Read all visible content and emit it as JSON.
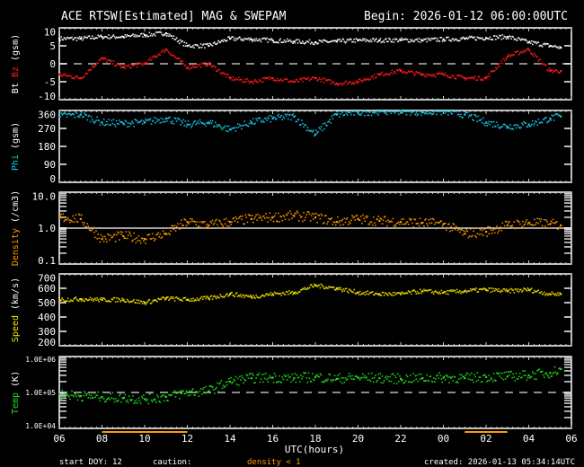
{
  "header": {
    "title": "ACE RTSW[Estimated] MAG & SWEPAM",
    "begin": "Begin: 2026-01-12 06:00:00UTC"
  },
  "footer": {
    "start_doy_label": "start DOY:",
    "start_doy": "12",
    "caution_label": "caution:",
    "caution_text": "density < 1",
    "created": "created: 2026-01-13 05:34:14UTC"
  },
  "colors": {
    "background": "#000000",
    "frame": "#ffffff",
    "bt": "#ffffff",
    "bz": "#ff1a1a",
    "phi": "#19c8e6",
    "density": "#ff9900",
    "speed": "#f0e000",
    "temp": "#22dd22",
    "caution": "#ff9900"
  },
  "chart_data": {
    "type": "scatter",
    "title": "ACE RTSW[Estimated] MAG & SWEPAM",
    "xlabel": "UTC(hours)",
    "x_tick_labels": [
      "06",
      "08",
      "10",
      "12",
      "14",
      "16",
      "18",
      "20",
      "22",
      "00",
      "02",
      "04",
      "06"
    ],
    "times": [
      "06:00",
      "07:00",
      "08:00",
      "09:00",
      "10:00",
      "11:00",
      "12:00",
      "13:00",
      "14:00",
      "15:00",
      "16:00",
      "17:00",
      "18:00",
      "19:00",
      "20:00",
      "21:00",
      "22:00",
      "23:00",
      "00:00",
      "01:00",
      "02:00",
      "03:00",
      "04:00",
      "05:00",
      "05:30"
    ],
    "panels": [
      {
        "id": "mag",
        "ylabel": [
          {
            "text": "Bt",
            "color": "#ffffff"
          },
          {
            "text": "Bz",
            "color": "#ff1a1a"
          },
          {
            "text": "(gsm)",
            "color": "#ffffff"
          }
        ],
        "ylim": [
          -10,
          10
        ],
        "log": false,
        "ticks": [
          "-10",
          "-5",
          "0",
          "5",
          "10"
        ],
        "tick_values": [
          -10,
          -5,
          0,
          5,
          10
        ],
        "ref_line": {
          "value": 0,
          "style": "dashed"
        },
        "series": [
          {
            "name": "Bt",
            "color": "#ffffff",
            "values": [
              7,
              7,
              7.5,
              7.5,
              8,
              8.5,
              5,
              5,
              7,
              6.8,
              6.5,
              6.2,
              6,
              6.2,
              6.5,
              6.5,
              6.6,
              6.5,
              6.8,
              7,
              7.2,
              7.5,
              6,
              5,
              4.5
            ]
          },
          {
            "name": "Bz",
            "color": "#ff1a1a",
            "values": [
              -3,
              -4,
              1.5,
              -1,
              0,
              4,
              -1,
              0,
              -4,
              -5,
              -4,
              -5,
              -4,
              -5.5,
              -5,
              -3,
              -2,
              -3,
              -3,
              -4,
              -4,
              2,
              4,
              -2,
              -2
            ]
          }
        ]
      },
      {
        "id": "phi",
        "ylabel": [
          {
            "text": "Phi",
            "color": "#19c8e6"
          },
          {
            "text": "(gsm)",
            "color": "#ffffff"
          }
        ],
        "ylim": [
          0,
          360
        ],
        "log": false,
        "ticks": [
          "0",
          "90",
          "180",
          "270",
          "360"
        ],
        "tick_values": [
          0,
          90,
          180,
          270,
          360
        ],
        "series": [
          {
            "name": "Phi",
            "color": "#19c8e6",
            "values": [
              330,
              340,
              300,
              295,
              300,
              320,
              290,
              300,
              265,
              300,
              320,
              330,
              240,
              340,
              350,
              355,
              358,
              350,
              355,
              340,
              300,
              280,
              290,
              320,
              330
            ]
          }
        ]
      },
      {
        "id": "density",
        "ylabel": [
          {
            "text": "Density",
            "color": "#ff9900"
          },
          {
            "text": "(/cm3)",
            "color": "#ffffff"
          }
        ],
        "ylim": [
          0.1,
          10
        ],
        "log": true,
        "ticks": [
          "0.1",
          "1.0",
          "10.0"
        ],
        "tick_values": [
          0.1,
          1,
          10
        ],
        "ref_line": {
          "value": 1,
          "style": "solid"
        },
        "series": [
          {
            "name": "Density",
            "color": "#ff9900",
            "values": [
              2,
              1.8,
              0.5,
              0.6,
              0.5,
              0.7,
              1.5,
              1.2,
              1.5,
              1.8,
              2,
              2.2,
              2,
              1.5,
              1.8,
              1.6,
              1.5,
              1.4,
              1.3,
              0.7,
              0.8,
              1.2,
              1.4,
              1.3,
              1.2
            ]
          }
        ]
      },
      {
        "id": "speed",
        "ylabel": [
          {
            "text": "Speed",
            "color": "#f0e000"
          },
          {
            "text": "(km/s)",
            "color": "#ffffff"
          }
        ],
        "ylim": [
          200,
          700
        ],
        "log": false,
        "ticks": [
          "200",
          "300",
          "400",
          "500",
          "600",
          "700"
        ],
        "tick_values": [
          200,
          300,
          400,
          500,
          600,
          700
        ],
        "series": [
          {
            "name": "Speed",
            "color": "#f0e000",
            "values": [
              520,
              525,
              520,
              520,
              500,
              530,
              520,
              530,
              560,
              540,
              560,
              570,
              620,
              600,
              570,
              560,
              560,
              580,
              570,
              580,
              590,
              580,
              590,
              560,
              560
            ]
          }
        ]
      },
      {
        "id": "temp",
        "ylabel": [
          {
            "text": "Temp",
            "color": "#22dd22"
          },
          {
            "text": "(K)",
            "color": "#ffffff"
          }
        ],
        "ylim": [
          10000,
          1000000
        ],
        "log": true,
        "ticks": [
          "1.0E+04",
          "1.0E+05",
          "1.0E+06"
        ],
        "tick_values": [
          10000,
          100000,
          1000000
        ],
        "ref_line": {
          "value": 100000,
          "style": "dashed"
        },
        "series": [
          {
            "name": "Temp",
            "color": "#22dd22",
            "values": [
              90000,
              80000,
              75000,
              70000,
              65000,
              75000,
              100000,
              110000,
              200000,
              250000,
              260000,
              250000,
              270000,
              240000,
              260000,
              250000,
              240000,
              250000,
              260000,
              250000,
              270000,
              280000,
              300000,
              350000,
              450000
            ]
          }
        ]
      }
    ]
  }
}
